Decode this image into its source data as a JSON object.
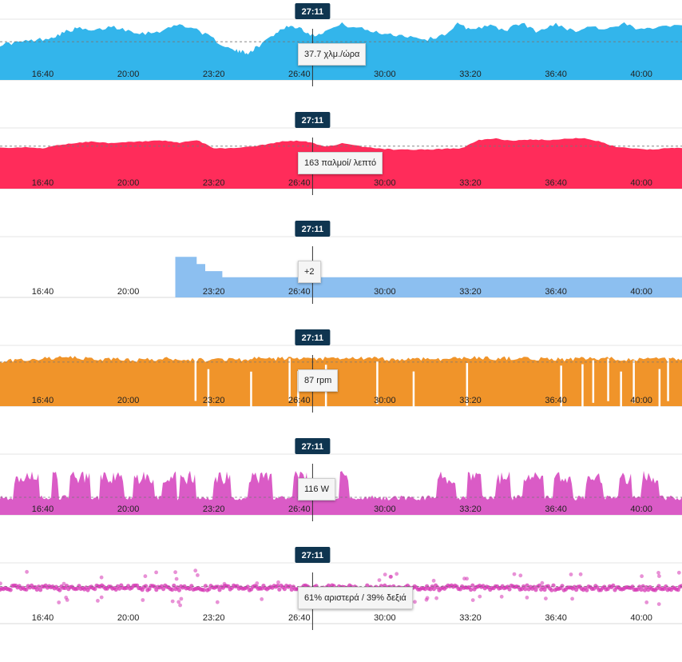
{
  "cursor": {
    "time": "27:11"
  },
  "x_ticks": [
    "16:40",
    "20:00",
    "23:20",
    "26:40",
    "30:00",
    "33:20",
    "36:40",
    "40:00"
  ],
  "chart_data": [
    {
      "type": "area",
      "id": "speed",
      "color": "#33b5eb",
      "x_range": [
        "15:00",
        "41:35"
      ],
      "ylim": [
        0,
        60
      ],
      "avg": 37.7,
      "tooltip": "37.7 χλμ./ώρα",
      "series": [
        {
          "x": [
            "15:00",
            "15:40",
            "16:20",
            "17:00",
            "17:30",
            "18:00",
            "18:40",
            "19:20",
            "20:00",
            "20:40",
            "21:20",
            "22:00",
            "22:40",
            "23:20",
            "24:00",
            "24:20",
            "24:40",
            "25:00",
            "25:40",
            "26:10",
            "26:40",
            "27:11",
            "27:40",
            "28:20",
            "29:00",
            "29:40",
            "30:20",
            "31:00",
            "31:40",
            "32:20",
            "32:50",
            "33:20",
            "34:00",
            "34:40",
            "35:20",
            "36:00",
            "36:40",
            "37:20",
            "38:00",
            "38:40",
            "39:20",
            "40:00",
            "40:40",
            "41:35"
          ],
          "values": [
            35,
            37,
            39,
            42,
            47,
            51,
            48,
            53,
            49,
            46,
            49,
            55,
            50,
            40,
            30,
            28,
            27,
            32,
            45,
            53,
            52,
            44,
            48,
            55,
            51,
            47,
            45,
            43,
            40,
            45,
            55,
            50,
            54,
            49,
            56,
            47,
            56,
            48,
            53,
            50,
            55,
            49,
            54,
            54
          ]
        }
      ]
    },
    {
      "type": "area",
      "id": "heart_rate",
      "color": "#ff2c5a",
      "x_range": [
        "15:00",
        "41:35"
      ],
      "ylim": [
        100,
        190
      ],
      "avg": 163,
      "tooltip": "163 παλμοί/ λεπτό",
      "series": [
        {
          "x": [
            "15:00",
            "16:00",
            "16:40",
            "17:20",
            "18:00",
            "18:40",
            "19:20",
            "20:00",
            "20:40",
            "21:20",
            "22:00",
            "22:40",
            "23:20",
            "24:00",
            "24:40",
            "25:20",
            "26:00",
            "26:40",
            "27:11",
            "27:40",
            "28:20",
            "29:00",
            "29:40",
            "30:20",
            "31:00",
            "31:40",
            "32:20",
            "33:00",
            "33:40",
            "34:20",
            "35:00",
            "35:40",
            "36:20",
            "37:00",
            "37:40",
            "38:20",
            "39:00",
            "39:40",
            "40:20",
            "41:00",
            "41:35"
          ],
          "values": [
            161,
            161,
            160,
            165,
            168,
            170,
            167,
            169,
            170,
            171,
            168,
            172,
            160,
            160,
            162,
            165,
            170,
            171,
            168,
            162,
            167,
            163,
            160,
            158,
            158,
            158,
            159,
            160,
            172,
            174,
            171,
            173,
            172,
            174,
            175,
            170,
            162,
            160,
            158,
            160,
            160
          ]
        }
      ]
    },
    {
      "type": "area",
      "id": "gear",
      "color": "#8cbff0",
      "x_range": [
        "15:00",
        "41:35"
      ],
      "ylim": [
        0,
        6
      ],
      "tooltip": "+2",
      "series": [
        {
          "x": [
            "21:50",
            "22:40",
            "22:40",
            "23:00",
            "23:00",
            "23:40",
            "23:40",
            "41:35"
          ],
          "values": [
            4,
            4,
            3.3,
            3.3,
            2.6,
            2.6,
            2,
            2
          ]
        }
      ]
    },
    {
      "type": "area",
      "id": "cadence",
      "color": "#f0942a",
      "x_range": [
        "15:00",
        "41:35"
      ],
      "ylim": [
        0,
        120
      ],
      "avg": 87,
      "tooltip": "87 rpm",
      "series": [
        {
          "x": [
            "15:00",
            "15:40",
            "16:20",
            "17:00",
            "17:40",
            "18:20",
            "19:00",
            "19:40",
            "20:20",
            "21:00",
            "21:40",
            "22:20",
            "23:00",
            "23:40",
            "24:20",
            "25:00",
            "25:40",
            "26:20",
            "27:00",
            "27:40",
            "28:20",
            "29:00",
            "29:40",
            "30:20",
            "31:00",
            "31:40",
            "32:20",
            "33:00",
            "33:40",
            "34:20",
            "35:00",
            "35:40",
            "36:20",
            "37:00",
            "37:40",
            "38:20",
            "39:00",
            "39:40",
            "40:20",
            "41:00",
            "41:35"
          ],
          "values": [
            88,
            91,
            93,
            95,
            96,
            94,
            92,
            93,
            91,
            92,
            94,
            92,
            91,
            93,
            92,
            94,
            93,
            95,
            92,
            94,
            93,
            95,
            94,
            92,
            93,
            94,
            93,
            95,
            96,
            94,
            95,
            93,
            94,
            92,
            94,
            93,
            94,
            92,
            93,
            92,
            93
          ],
          "gaps": [
            "22:35",
            "23:05",
            "24:45",
            "26:15",
            "26:35",
            "27:40",
            "29:40",
            "31:05",
            "33:10",
            "36:50",
            "37:40",
            "38:05",
            "38:40",
            "39:10",
            "39:40",
            "40:40",
            "41:00"
          ]
        }
      ]
    },
    {
      "type": "area",
      "id": "power",
      "color": "#da5bc6",
      "x_range": [
        "15:00",
        "41:35"
      ],
      "ylim": [
        0,
        400
      ],
      "avg": 116,
      "tooltip": "116 W"
    },
    {
      "type": "scatter",
      "id": "balance",
      "color": "#d637b4",
      "x_range": [
        "15:00",
        "41:35"
      ],
      "ylim": [
        0,
        100
      ],
      "avg": 61,
      "tooltip": "61% αριστερά / 39% δεξιά"
    }
  ]
}
